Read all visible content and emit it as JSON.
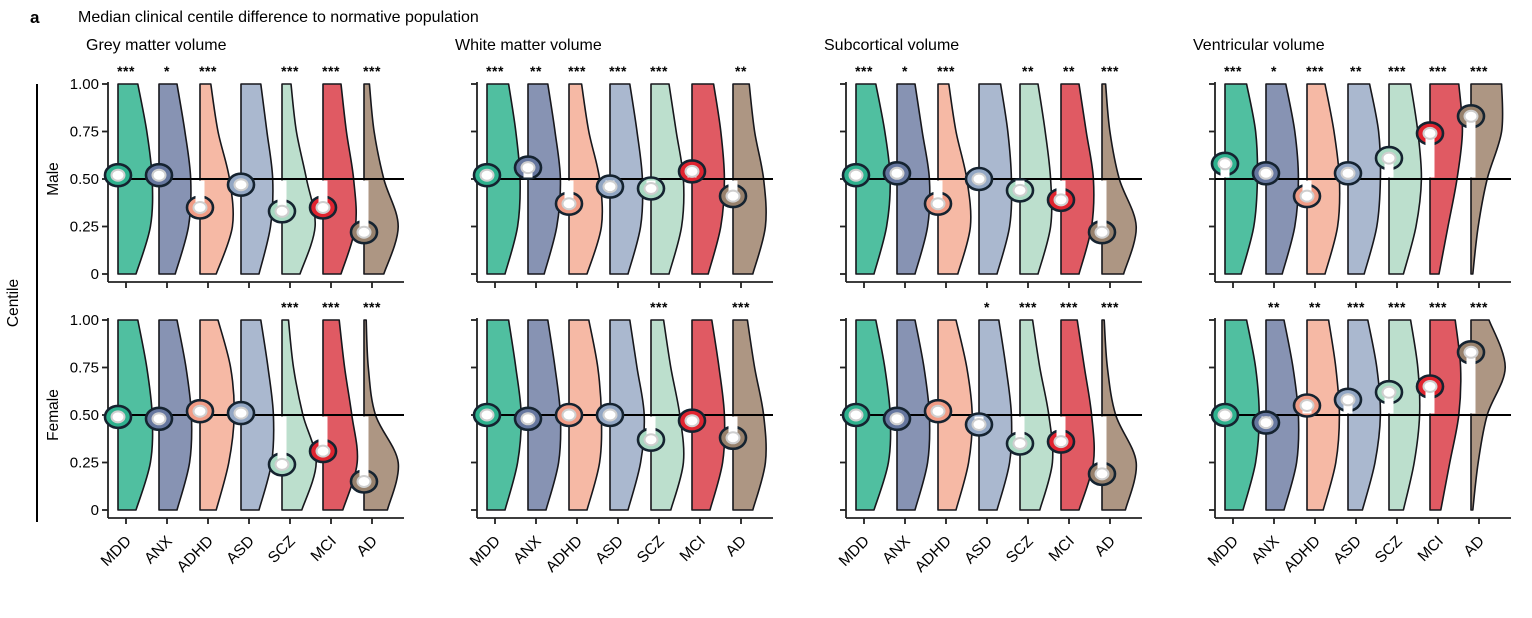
{
  "header": {
    "panel_label": "a",
    "title": "Median clinical centile difference to normative population"
  },
  "row_labels": {
    "male": "Male",
    "female": "Female"
  },
  "y_axis": {
    "label": "Centile",
    "tick_labels": [
      "1.00",
      "0.75",
      "0.50",
      "0.25",
      "0"
    ],
    "tick_values": [
      1.0,
      0.75,
      0.5,
      0.25,
      0
    ]
  },
  "style": {
    "violin_outline": "#17171c",
    "reference_line_color": "#000000",
    "axis_color": "#222222",
    "marker_ring_outline": "#152330",
    "marker_inner_fill": "#ffffff",
    "marker_inner_stroke": "#cfcfcf",
    "difference_stripe": "#ffffff",
    "star_color": "#000000",
    "fills": {
      "MDD": "#50bfa0",
      "ANX": "#8793b3",
      "ADHD": "#f6b9a5",
      "ASD": "#aab8cf",
      "SCZ": "#bcdfcd",
      "MCI": "#e05a63",
      "AD": "#ad9683"
    },
    "accents": {
      "MDD": "#2eb18e",
      "ANX": "#66779f",
      "ADHD": "#f09c86",
      "ASD": "#93a7c4",
      "SCZ": "#a8d9c2",
      "MCI": "#e0242f",
      "AD": "#97816c"
    }
  },
  "chart_data": {
    "type": "half-violin",
    "ylim": [
      0,
      1
    ],
    "reference_line": 0.5,
    "categories": [
      "MDD",
      "ANX",
      "ADHD",
      "ASD",
      "SCZ",
      "MCI",
      "AD"
    ],
    "density_sample_centiles": [
      1.0,
      0.75,
      0.5,
      0.25,
      0.0
    ],
    "columns": [
      {
        "title": "Grey matter volume",
        "rows": [
          {
            "sex": "Male",
            "medians": [
              0.52,
              0.52,
              0.35,
              0.47,
              0.33,
              0.35,
              0.22
            ],
            "significance": [
              "***",
              "*",
              "***",
              "",
              "***",
              "***",
              "***"
            ],
            "density_widths": [
              [
                0.55,
                0.8,
                0.95,
                0.9,
                0.5
              ],
              [
                0.5,
                0.72,
                0.88,
                0.82,
                0.45
              ],
              [
                0.3,
                0.5,
                0.82,
                0.9,
                0.45
              ],
              [
                0.55,
                0.72,
                0.88,
                0.82,
                0.5
              ],
              [
                0.25,
                0.4,
                0.68,
                0.92,
                0.5
              ],
              [
                0.5,
                0.65,
                0.85,
                0.9,
                0.5
              ],
              [
                0.15,
                0.28,
                0.55,
                0.95,
                0.55
              ]
            ]
          },
          {
            "sex": "Female",
            "medians": [
              0.49,
              0.48,
              0.52,
              0.51,
              0.24,
              0.31,
              0.15
            ],
            "significance": [
              "",
              "",
              "",
              "",
              "***",
              "***",
              "***"
            ],
            "density_widths": [
              [
                0.55,
                0.8,
                0.95,
                0.9,
                0.5
              ],
              [
                0.5,
                0.75,
                0.9,
                0.85,
                0.5
              ],
              [
                0.5,
                0.85,
                0.95,
                0.8,
                0.45
              ],
              [
                0.55,
                0.75,
                0.9,
                0.85,
                0.5
              ],
              [
                0.18,
                0.32,
                0.58,
                0.95,
                0.55
              ],
              [
                0.45,
                0.6,
                0.8,
                0.95,
                0.55
              ],
              [
                0.06,
                0.12,
                0.32,
                0.95,
                0.65
              ]
            ]
          }
        ]
      },
      {
        "title": "White matter volume",
        "rows": [
          {
            "sex": "Male",
            "medians": [
              0.52,
              0.56,
              0.37,
              0.46,
              0.45,
              0.54,
              0.41
            ],
            "significance": [
              "***",
              "**",
              "***",
              "***",
              "***",
              "",
              "**"
            ],
            "density_widths": [
              [
                0.6,
                0.8,
                0.92,
                0.85,
                0.5
              ],
              [
                0.55,
                0.75,
                0.9,
                0.8,
                0.45
              ],
              [
                0.35,
                0.55,
                0.85,
                0.9,
                0.5
              ],
              [
                0.55,
                0.75,
                0.9,
                0.85,
                0.5
              ],
              [
                0.5,
                0.7,
                0.9,
                0.85,
                0.5
              ],
              [
                0.6,
                0.8,
                0.9,
                0.8,
                0.45
              ],
              [
                0.45,
                0.6,
                0.85,
                0.9,
                0.55
              ]
            ]
          },
          {
            "sex": "Female",
            "medians": [
              0.5,
              0.48,
              0.5,
              0.5,
              0.37,
              0.47,
              0.38
            ],
            "significance": [
              "",
              "",
              "",
              "",
              "***",
              "",
              "***"
            ],
            "density_widths": [
              [
                0.6,
                0.8,
                0.95,
                0.85,
                0.5
              ],
              [
                0.55,
                0.75,
                0.9,
                0.85,
                0.5
              ],
              [
                0.55,
                0.8,
                0.9,
                0.85,
                0.5
              ],
              [
                0.55,
                0.75,
                0.95,
                0.85,
                0.5
              ],
              [
                0.35,
                0.55,
                0.8,
                0.9,
                0.55
              ],
              [
                0.55,
                0.75,
                0.9,
                0.85,
                0.5
              ],
              [
                0.4,
                0.6,
                0.85,
                0.9,
                0.55
              ]
            ]
          }
        ]
      },
      {
        "title": "Subcortical volume",
        "rows": [
          {
            "sex": "Male",
            "medians": [
              0.52,
              0.53,
              0.37,
              0.5,
              0.44,
              0.39,
              0.22
            ],
            "significance": [
              "***",
              "*",
              "***",
              "",
              "**",
              "**",
              "***"
            ],
            "density_widths": [
              [
                0.55,
                0.8,
                0.95,
                0.85,
                0.5
              ],
              [
                0.5,
                0.7,
                0.9,
                0.85,
                0.5
              ],
              [
                0.3,
                0.5,
                0.8,
                0.9,
                0.55
              ],
              [
                0.6,
                0.8,
                0.9,
                0.85,
                0.5
              ],
              [
                0.5,
                0.7,
                0.85,
                0.85,
                0.5
              ],
              [
                0.5,
                0.7,
                0.9,
                0.85,
                0.5
              ],
              [
                0.1,
                0.22,
                0.48,
                0.95,
                0.6
              ]
            ]
          },
          {
            "sex": "Female",
            "medians": [
              0.5,
              0.48,
              0.52,
              0.45,
              0.35,
              0.36,
              0.19
            ],
            "significance": [
              "",
              "",
              "",
              "*",
              "***",
              "***",
              "***"
            ],
            "density_widths": [
              [
                0.55,
                0.8,
                0.95,
                0.9,
                0.5
              ],
              [
                0.5,
                0.75,
                0.9,
                0.85,
                0.5
              ],
              [
                0.5,
                0.8,
                0.95,
                0.85,
                0.5
              ],
              [
                0.55,
                0.75,
                0.9,
                0.85,
                0.5
              ],
              [
                0.35,
                0.55,
                0.8,
                0.9,
                0.55
              ],
              [
                0.45,
                0.65,
                0.85,
                0.9,
                0.5
              ],
              [
                0.06,
                0.15,
                0.38,
                0.95,
                0.65
              ]
            ]
          }
        ]
      },
      {
        "title": "Ventricular volume",
        "rows": [
          {
            "sex": "Male",
            "medians": [
              0.58,
              0.53,
              0.41,
              0.53,
              0.61,
              0.74,
              0.83
            ],
            "significance": [
              "***",
              "*",
              "***",
              "**",
              "***",
              "***",
              "***"
            ],
            "density_widths": [
              [
                0.6,
                0.85,
                0.9,
                0.8,
                0.45
              ],
              [
                0.55,
                0.8,
                0.9,
                0.8,
                0.45
              ],
              [
                0.5,
                0.75,
                0.9,
                0.85,
                0.5
              ],
              [
                0.6,
                0.85,
                0.9,
                0.8,
                0.45
              ],
              [
                0.6,
                0.8,
                0.9,
                0.75,
                0.4
              ],
              [
                0.8,
                0.9,
                0.75,
                0.5,
                0.25
              ],
              [
                0.85,
                0.85,
                0.45,
                0.2,
                0.05
              ]
            ]
          },
          {
            "sex": "Female",
            "medians": [
              0.5,
              0.46,
              0.55,
              0.58,
              0.62,
              0.65,
              0.83
            ],
            "significance": [
              "",
              "**",
              "**",
              "***",
              "***",
              "***",
              "***"
            ],
            "density_widths": [
              [
                0.6,
                0.85,
                0.95,
                0.85,
                0.5
              ],
              [
                0.5,
                0.75,
                0.9,
                0.85,
                0.5
              ],
              [
                0.6,
                0.8,
                0.9,
                0.8,
                0.45
              ],
              [
                0.55,
                0.8,
                0.9,
                0.75,
                0.4
              ],
              [
                0.6,
                0.8,
                0.85,
                0.7,
                0.4
              ],
              [
                0.7,
                0.85,
                0.8,
                0.55,
                0.3
              ],
              [
                0.5,
                0.95,
                0.45,
                0.2,
                0.05
              ]
            ]
          }
        ]
      }
    ]
  }
}
